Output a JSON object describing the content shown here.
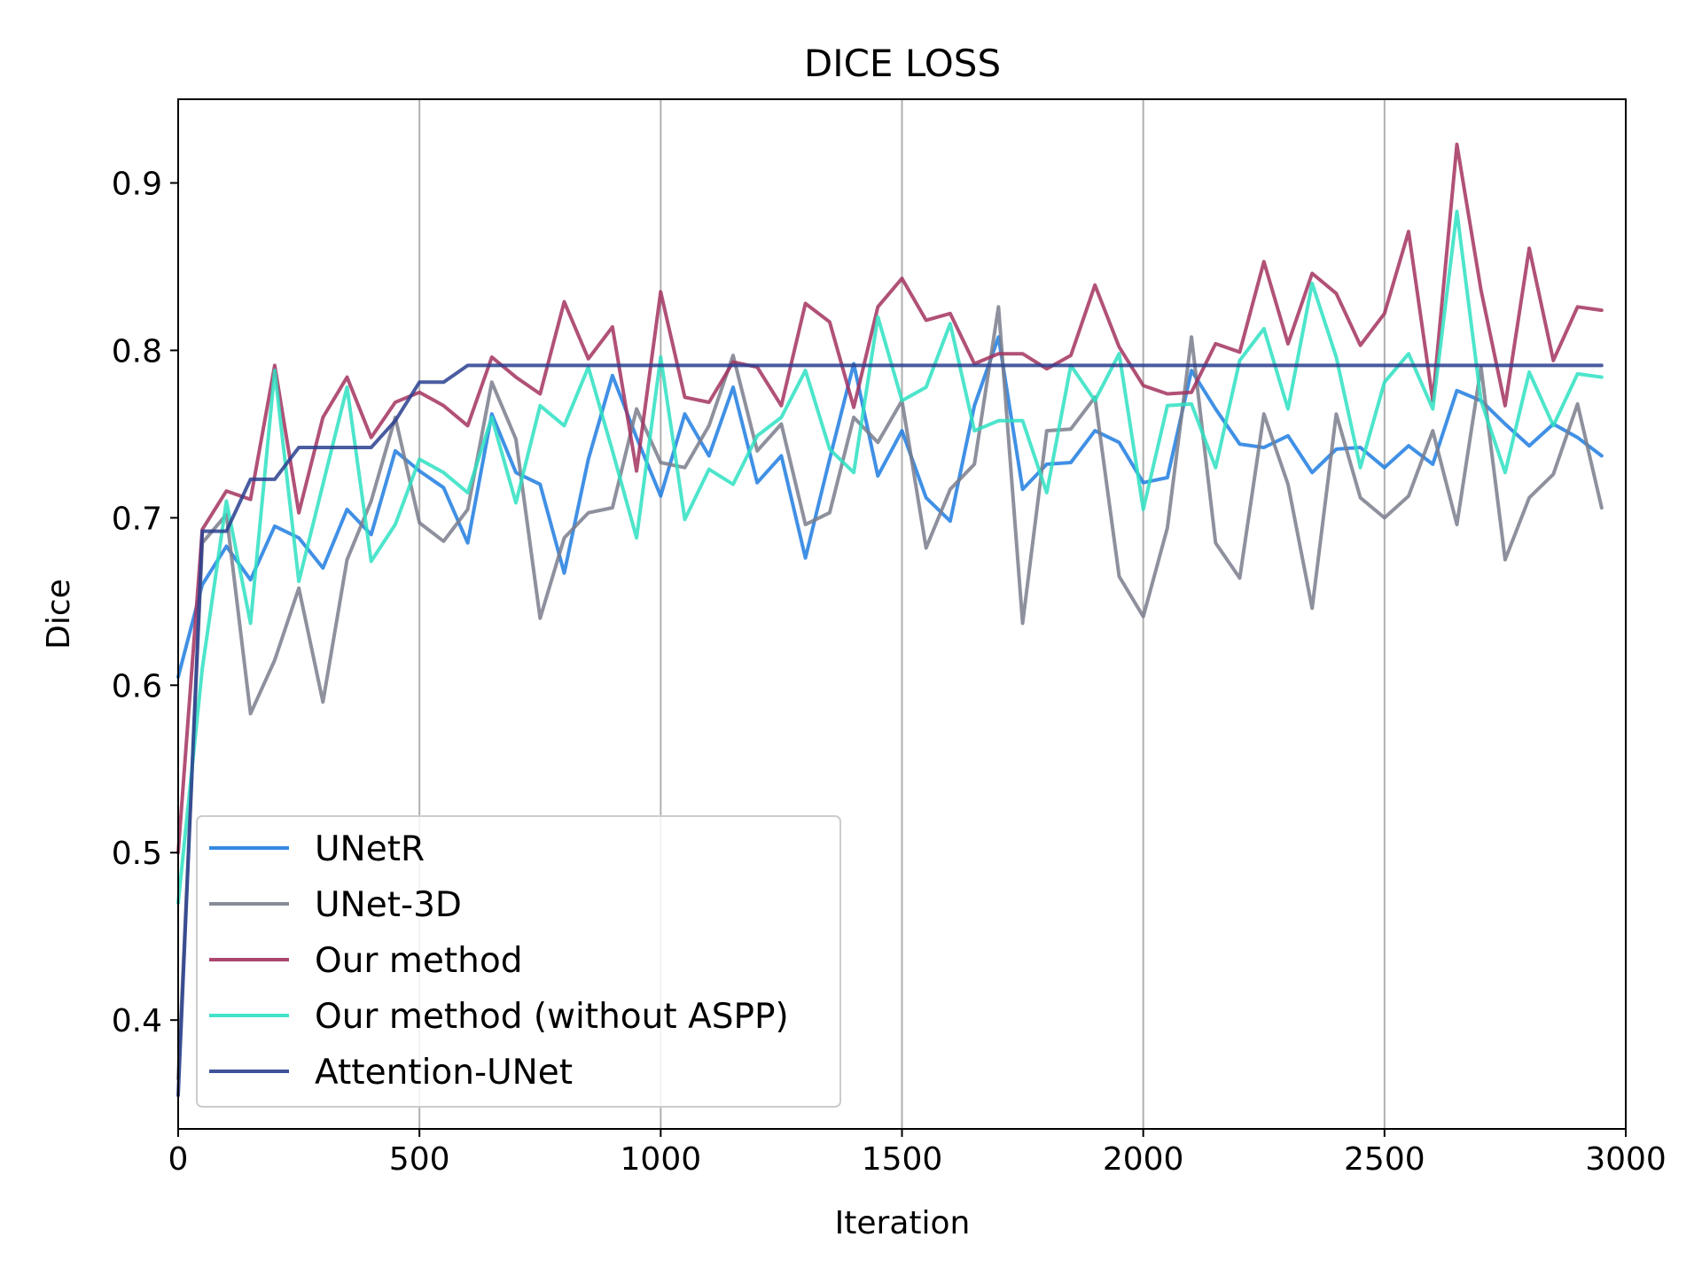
{
  "chart_data": {
    "type": "line",
    "title": "DICE LOSS",
    "xlabel": "Iteration",
    "ylabel": "Dice",
    "xlim": [
      0,
      3000
    ],
    "ylim": [
      0.335,
      0.95
    ],
    "xticks": [
      0,
      500,
      1000,
      1500,
      2000,
      2500,
      3000
    ],
    "xtick_labels": [
      "0",
      "500",
      "1000",
      "1500",
      "2000",
      "2500",
      "3000"
    ],
    "yticks": [
      0.4,
      0.5,
      0.6,
      0.7,
      0.8,
      0.9
    ],
    "ytick_labels": [
      "0.4",
      "0.5",
      "0.6",
      "0.7",
      "0.8",
      "0.9"
    ],
    "grid": "vertical",
    "legend_position": "lower-left",
    "x": [
      0,
      50,
      100,
      150,
      200,
      250,
      300,
      350,
      400,
      450,
      500,
      550,
      600,
      650,
      700,
      750,
      800,
      850,
      900,
      950,
      1000,
      1050,
      1100,
      1150,
      1200,
      1250,
      1300,
      1350,
      1400,
      1450,
      1500,
      1550,
      1600,
      1650,
      1700,
      1750,
      1800,
      1850,
      1900,
      1950,
      2000,
      2050,
      2100,
      2150,
      2200,
      2250,
      2300,
      2350,
      2400,
      2450,
      2500,
      2550,
      2600,
      2650,
      2700,
      2750,
      2800,
      2850,
      2900,
      2950
    ],
    "series": [
      {
        "name": "UNetR",
        "color": "#1f7de0",
        "values": [
          0.605,
          0.66,
          0.683,
          0.663,
          0.695,
          0.688,
          0.67,
          0.705,
          0.69,
          0.74,
          0.728,
          0.718,
          0.685,
          0.762,
          0.727,
          0.72,
          0.667,
          0.735,
          0.785,
          0.748,
          0.713,
          0.762,
          0.737,
          0.778,
          0.721,
          0.737,
          0.676,
          0.735,
          0.792,
          0.725,
          0.752,
          0.712,
          0.698,
          0.767,
          0.808,
          0.717,
          0.732,
          0.733,
          0.752,
          0.745,
          0.721,
          0.724,
          0.788,
          0.765,
          0.744,
          0.742,
          0.749,
          0.727,
          0.741,
          0.742,
          0.73,
          0.743,
          0.732,
          0.776,
          0.77,
          0.756,
          0.743,
          0.756,
          0.748,
          0.737
        ]
      },
      {
        "name": "UNet-3D",
        "color": "#7a7e8c",
        "values": [
          0.365,
          0.685,
          0.702,
          0.583,
          0.615,
          0.658,
          0.59,
          0.675,
          0.71,
          0.76,
          0.697,
          0.686,
          0.705,
          0.781,
          0.747,
          0.64,
          0.688,
          0.703,
          0.706,
          0.765,
          0.733,
          0.73,
          0.755,
          0.797,
          0.74,
          0.756,
          0.696,
          0.703,
          0.76,
          0.745,
          0.77,
          0.682,
          0.717,
          0.732,
          0.826,
          0.637,
          0.752,
          0.753,
          0.772,
          0.665,
          0.641,
          0.694,
          0.808,
          0.685,
          0.664,
          0.762,
          0.72,
          0.646,
          0.762,
          0.712,
          0.7,
          0.713,
          0.752,
          0.696,
          0.79,
          0.675,
          0.712,
          0.726,
          0.768,
          0.706
        ]
      },
      {
        "name": "Our method",
        "color": "#a3325f",
        "values": [
          0.5,
          0.693,
          0.716,
          0.711,
          0.791,
          0.703,
          0.76,
          0.784,
          0.748,
          0.769,
          0.775,
          0.767,
          0.755,
          0.796,
          0.784,
          0.774,
          0.829,
          0.795,
          0.814,
          0.728,
          0.835,
          0.772,
          0.769,
          0.793,
          0.79,
          0.767,
          0.828,
          0.817,
          0.766,
          0.826,
          0.843,
          0.818,
          0.822,
          0.792,
          0.798,
          0.798,
          0.789,
          0.797,
          0.839,
          0.802,
          0.779,
          0.774,
          0.775,
          0.804,
          0.799,
          0.853,
          0.804,
          0.846,
          0.834,
          0.803,
          0.822,
          0.871,
          0.77,
          0.923,
          0.836,
          0.767,
          0.861,
          0.794,
          0.826,
          0.824
        ]
      },
      {
        "name": "Our method (without ASPP)",
        "color": "#2ee0c2",
        "values": [
          0.47,
          0.61,
          0.71,
          0.637,
          0.788,
          0.662,
          0.72,
          0.778,
          0.674,
          0.696,
          0.735,
          0.727,
          0.715,
          0.76,
          0.709,
          0.767,
          0.755,
          0.79,
          0.74,
          0.688,
          0.796,
          0.699,
          0.729,
          0.72,
          0.749,
          0.76,
          0.788,
          0.741,
          0.727,
          0.82,
          0.77,
          0.778,
          0.816,
          0.752,
          0.758,
          0.758,
          0.715,
          0.791,
          0.77,
          0.798,
          0.705,
          0.767,
          0.768,
          0.73,
          0.794,
          0.813,
          0.765,
          0.84,
          0.796,
          0.73,
          0.781,
          0.798,
          0.765,
          0.883,
          0.77,
          0.727,
          0.787,
          0.755,
          0.786,
          0.784
        ]
      },
      {
        "name": "Attention-UNet",
        "color": "#2a3f8f",
        "values": [
          0.355,
          0.692,
          0.692,
          0.723,
          0.723,
          0.742,
          0.742,
          0.742,
          0.742,
          0.758,
          0.781,
          0.781,
          0.791,
          0.791,
          0.791,
          0.791,
          0.791,
          0.791,
          0.791,
          0.791,
          0.791,
          0.791,
          0.791,
          0.791,
          0.791,
          0.791,
          0.791,
          0.791,
          0.791,
          0.791,
          0.791,
          0.791,
          0.791,
          0.791,
          0.791,
          0.791,
          0.791,
          0.791,
          0.791,
          0.791,
          0.791,
          0.791,
          0.791,
          0.791,
          0.791,
          0.791,
          0.791,
          0.791,
          0.791,
          0.791,
          0.791,
          0.791,
          0.791,
          0.791,
          0.791,
          0.791,
          0.791,
          0.791,
          0.791,
          0.791
        ]
      }
    ]
  }
}
